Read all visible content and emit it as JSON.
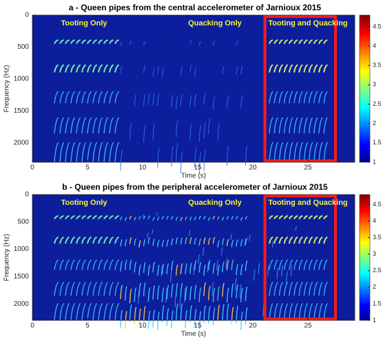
{
  "chart_data": [
    {
      "type": "spectrogram",
      "title": "a - Queen pipes from the central accelerometer of Jarnioux 2015",
      "xlabel": "Time (s)",
      "ylabel": "Frequency (Hz)",
      "xlim": [
        0,
        29.25
      ],
      "xticks": [
        0,
        5,
        10,
        15,
        20,
        25
      ],
      "ylim": [
        2300,
        0
      ],
      "yticks": [
        0,
        500,
        1000,
        1500,
        2000
      ],
      "colorbar": {
        "lim": [
          1,
          4.8
        ],
        "ticks": [
          1,
          1.5,
          2,
          2.5,
          3,
          3.5,
          4,
          4.5
        ]
      },
      "annotations": [
        "Tooting Only",
        "Quacking Only",
        "Tooting and Quacking"
      ],
      "highlight_xlim": [
        21.1,
        27.5
      ],
      "highlight_color": "#ff1a1a"
    },
    {
      "type": "spectrogram",
      "title": "b - Queen pipes from the peripheral accelerometer of Jarnioux 2015",
      "xlabel": "Time (s)",
      "ylabel": "Frequency (Hz)",
      "xlim": [
        0,
        29.25
      ],
      "xticks": [
        0,
        5,
        10,
        15,
        20,
        25
      ],
      "ylim": [
        2300,
        0
      ],
      "yticks": [
        0,
        500,
        1000,
        1500,
        2000
      ],
      "colorbar": {
        "lim": [
          1,
          4.8
        ],
        "ticks": [
          1,
          1.5,
          2,
          2.5,
          3,
          3.5,
          4,
          4.5
        ]
      },
      "annotations": [
        "Tooting Only",
        "Quacking Only",
        "Tooting and Quacking"
      ],
      "highlight_xlim": [
        21.1,
        27.5
      ],
      "highlight_color": "#ff1a1a"
    }
  ]
}
